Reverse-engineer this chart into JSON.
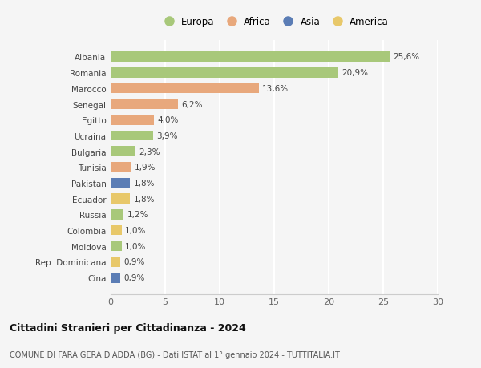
{
  "countries": [
    "Albania",
    "Romania",
    "Marocco",
    "Senegal",
    "Egitto",
    "Ucraina",
    "Bulgaria",
    "Tunisia",
    "Pakistan",
    "Ecuador",
    "Russia",
    "Colombia",
    "Moldova",
    "Rep. Dominicana",
    "Cina"
  ],
  "values": [
    25.6,
    20.9,
    13.6,
    6.2,
    4.0,
    3.9,
    2.3,
    1.9,
    1.8,
    1.8,
    1.2,
    1.0,
    1.0,
    0.9,
    0.9
  ],
  "labels": [
    "25,6%",
    "20,9%",
    "13,6%",
    "6,2%",
    "4,0%",
    "3,9%",
    "2,3%",
    "1,9%",
    "1,8%",
    "1,8%",
    "1,2%",
    "1,0%",
    "1,0%",
    "0,9%",
    "0,9%"
  ],
  "continent": [
    "Europa",
    "Europa",
    "Africa",
    "Africa",
    "Africa",
    "Europa",
    "Europa",
    "Africa",
    "Asia",
    "America",
    "Europa",
    "America",
    "Europa",
    "America",
    "Asia"
  ],
  "continent_colors": {
    "Europa": "#a8c87a",
    "Africa": "#e8a87c",
    "Asia": "#5b7db5",
    "America": "#e8c86a"
  },
  "legend_order": [
    "Europa",
    "Africa",
    "Asia",
    "America"
  ],
  "title": "Cittadini Stranieri per Cittadinanza - 2024",
  "subtitle": "COMUNE DI FARA GERA D'ADDA (BG) - Dati ISTAT al 1° gennaio 2024 - TUTTITALIA.IT",
  "xlim": [
    0,
    30
  ],
  "xticks": [
    0,
    5,
    10,
    15,
    20,
    25,
    30
  ],
  "background_color": "#f5f5f5",
  "plot_bg_color": "#f5f5f5",
  "grid_color": "#ffffff",
  "bar_height": 0.65
}
